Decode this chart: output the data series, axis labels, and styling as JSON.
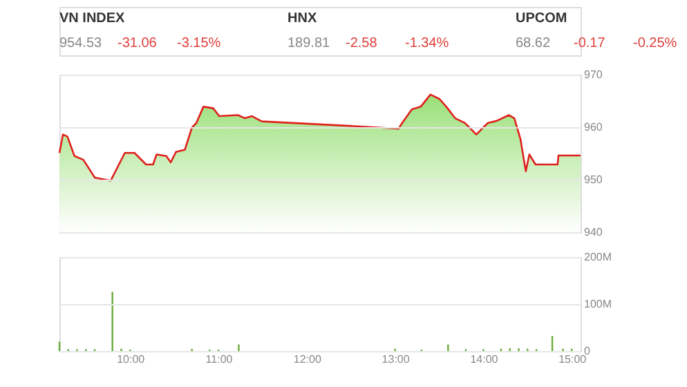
{
  "chart_data": [
    {
      "type": "other",
      "annotations": [
        "VN INDEX",
        "954.53",
        "-31.06",
        "-3.15%",
        "HNX",
        "189.81",
        "-2.58",
        "-1.34%",
        "UPCOM",
        "68.62",
        "-0.17",
        "-0.25%"
      ]
    },
    {
      "type": "area",
      "x": [
        9.2,
        9.24,
        9.29,
        9.37,
        9.47,
        9.6,
        9.78,
        9.94,
        10.05,
        10.18,
        10.26,
        10.3,
        10.41,
        10.46,
        10.52,
        10.62,
        10.7,
        10.75,
        10.83,
        10.94,
        11.01,
        11.22,
        11.3,
        11.38,
        11.49,
        12.53,
        13.04,
        13.08,
        13.19,
        13.29,
        13.4,
        13.5,
        13.58,
        13.68,
        13.79,
        13.92,
        14.05,
        14.15,
        14.29,
        14.35,
        14.42,
        14.48,
        14.52,
        14.59,
        14.84,
        14.85,
        15.1
      ],
      "series": [
        {
          "color": "#e0201c",
          "values": [
            955.1,
            958.6,
            958.2,
            954.5,
            953.8,
            950.4,
            949.8,
            955.1,
            955.1,
            952.9,
            952.9,
            954.8,
            954.5,
            953.3,
            955.3,
            955.7,
            959.9,
            960.8,
            963.9,
            963.6,
            962.1,
            962.3,
            961.7,
            962.1,
            961.1,
            960.2,
            959.7,
            960.8,
            963.4,
            963.9,
            966.2,
            965.4,
            963.9,
            961.7,
            960.8,
            958.6,
            960.8,
            961.2,
            962.3,
            961.7,
            957.7,
            951.6,
            954.8,
            952.9,
            952.9,
            954.6,
            954.6
          ]
        }
      ],
      "xlim": [
        9.2,
        15.1
      ],
      "ylim": [
        940,
        970
      ],
      "yticks": [
        940,
        950,
        960,
        970
      ],
      "grid": "y",
      "tick_labels": "y"
    },
    {
      "type": "bar",
      "x": [
        9.2,
        9.3,
        9.4,
        9.5,
        9.6,
        9.8,
        9.9,
        10.0,
        10.7,
        10.9,
        11.0,
        11.23,
        13.0,
        13.3,
        13.6,
        13.8,
        14.0,
        14.2,
        14.3,
        14.4,
        14.5,
        14.6,
        14.78,
        14.9,
        15.0
      ],
      "series": [
        {
          "color": "#6aaa3a",
          "values": [
            20,
            4,
            4,
            4,
            4,
            126,
            5,
            3,
            5,
            3,
            3,
            14,
            5,
            3,
            14,
            4,
            4,
            5,
            6,
            6,
            5,
            4,
            32,
            5,
            5
          ]
        }
      ],
      "xlim": [
        9.2,
        15.1
      ],
      "ylim": [
        0,
        200
      ],
      "yticks": [
        0,
        {
          "value": 100,
          "label": "100M"
        },
        {
          "value": 200,
          "label": "200M"
        }
      ],
      "xticks": [
        {
          "value": 10,
          "label": "10:00"
        },
        {
          "value": 11,
          "label": "11:00"
        },
        {
          "value": 12,
          "label": "12:00"
        },
        {
          "value": 13,
          "label": "13:00"
        },
        {
          "value": 14,
          "label": "14:00"
        },
        {
          "value": 15,
          "label": "15:00"
        }
      ],
      "grid": "y"
    }
  ]
}
